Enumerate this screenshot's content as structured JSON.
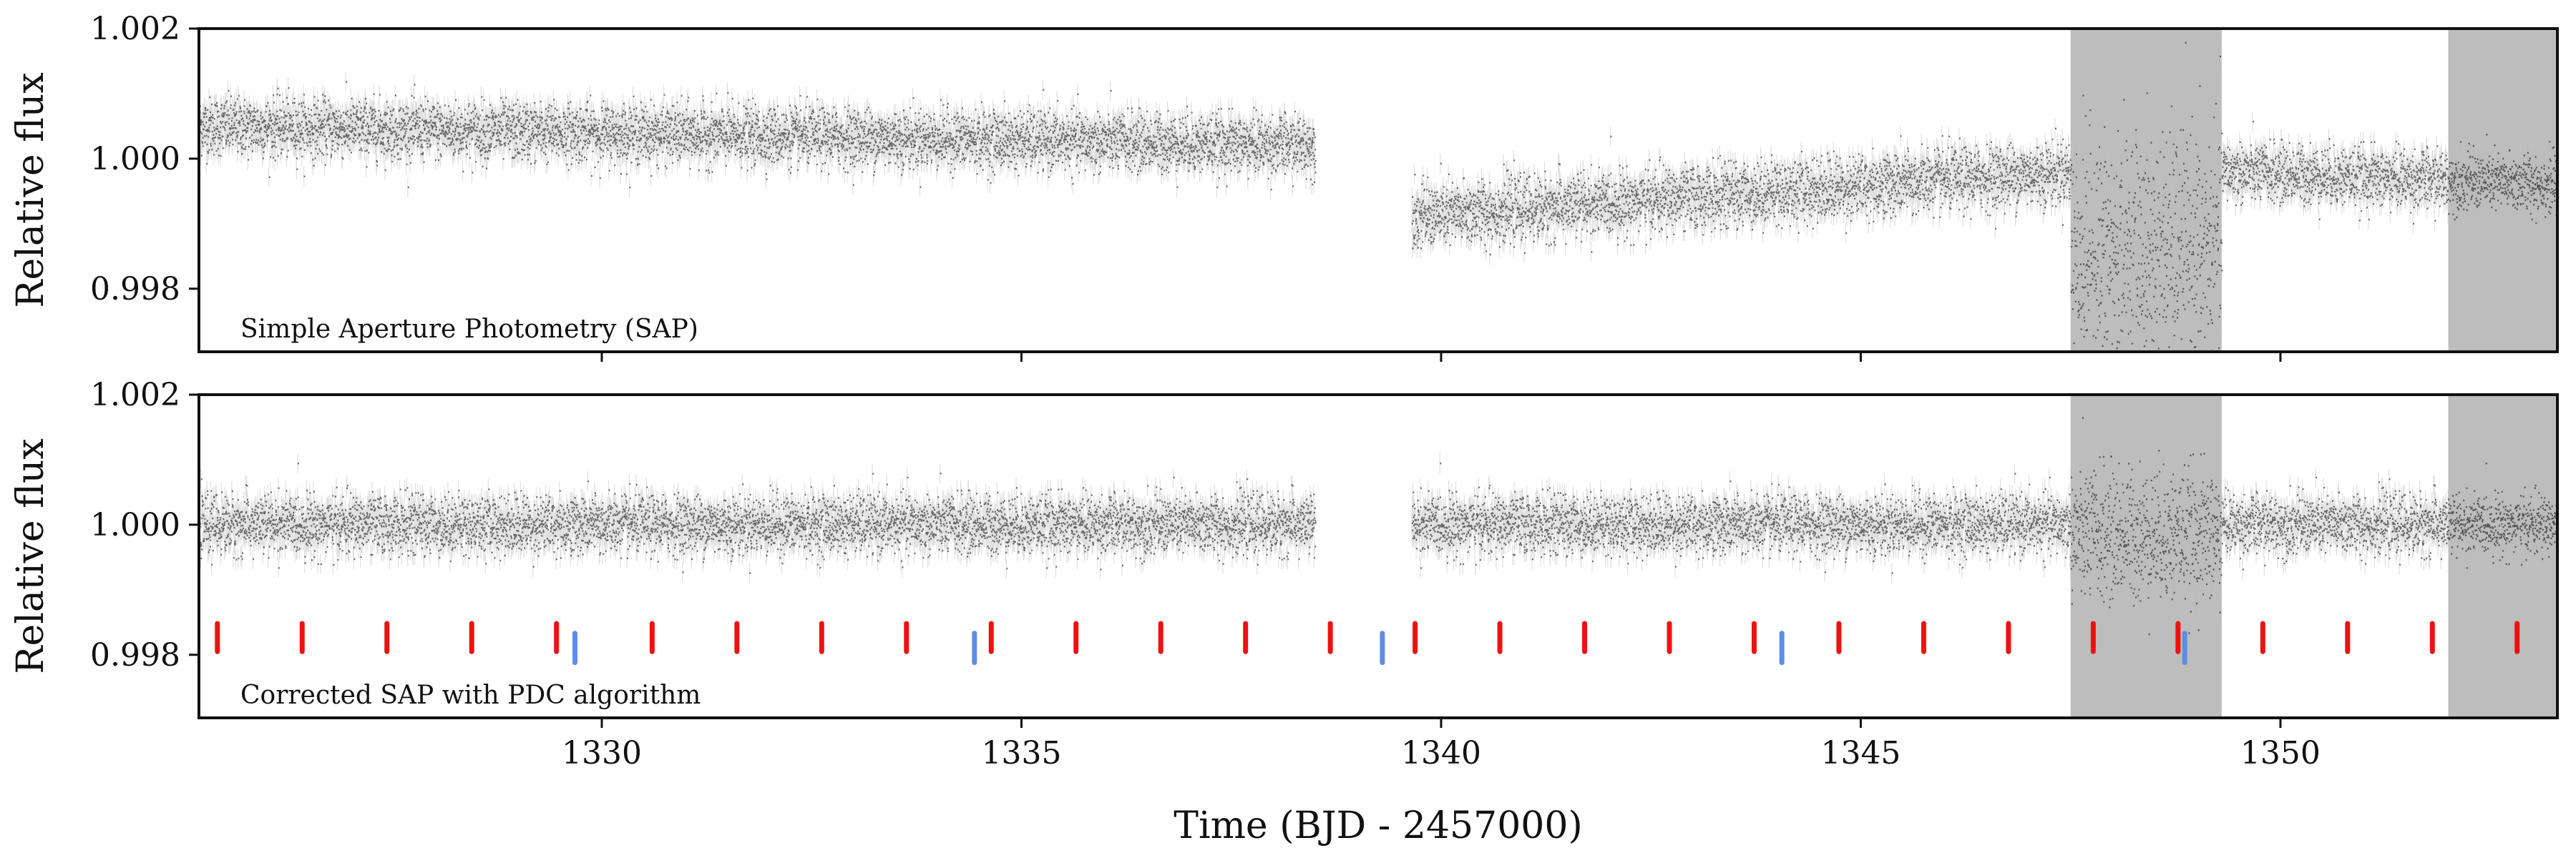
{
  "figure": {
    "xlabel": "Time (BJD - 2457000)",
    "ylabel": "Relative flux"
  },
  "chart_data": [
    {
      "type": "scatter",
      "panel": "top",
      "annotation": "Simple Aperture Photometry (SAP)",
      "xlabel": "",
      "ylabel": "Relative flux",
      "xlim": [
        1325.2,
        1353.3
      ],
      "ylim": [
        0.99703,
        1.002
      ],
      "xticks": [
        1330,
        1335,
        1340,
        1345,
        1350
      ],
      "xticklabels": [],
      "yticks": [
        0.998,
        1.0,
        1.002
      ],
      "yticklabels": [
        "0.998",
        "1.000",
        "1.002"
      ],
      "point_color": "#000000",
      "errorbar_color": "#bbbbbb",
      "shaded_intervals": [
        [
          1347.5,
          1349.3
        ],
        [
          1352.0,
          1353.3
        ]
      ],
      "shade_color": "#bdbdbd",
      "grid": false,
      "segments": [
        {
          "x_start": 1325.2,
          "x_end": 1338.5,
          "y_start": 1.0005,
          "y_end": 1.0002,
          "scatter": 0.00022
        },
        {
          "x_start": 1339.65,
          "x_end": 1347.5,
          "y_start": 0.9991,
          "y_end": 0.9998,
          "scatter": 0.00024
        },
        {
          "x_start": 1347.5,
          "x_end": 1349.3,
          "y_start": 0.9985,
          "y_end": 0.9986,
          "scatter": 0.0009
        },
        {
          "x_start": 1349.3,
          "x_end": 1353.3,
          "y_start": 0.9998,
          "y_end": 0.9996,
          "scatter": 0.00022
        }
      ]
    },
    {
      "type": "scatter",
      "panel": "bottom",
      "annotation": "Corrected SAP with PDC algorithm",
      "xlabel": "Time (BJD - 2457000)",
      "ylabel": "Relative flux",
      "xlim": [
        1325.2,
        1353.3
      ],
      "ylim": [
        0.99703,
        1.002
      ],
      "xticks": [
        1330,
        1335,
        1340,
        1345,
        1350
      ],
      "xticklabels": [
        "1330",
        "1335",
        "1340",
        "1345",
        "1350"
      ],
      "yticks": [
        0.998,
        1.0,
        1.002
      ],
      "yticklabels": [
        "0.998",
        "1.000",
        "1.002"
      ],
      "point_color": "#000000",
      "errorbar_color": "#bbbbbb",
      "shaded_intervals": [
        [
          1347.5,
          1349.3
        ],
        [
          1352.0,
          1353.3
        ]
      ],
      "shade_color": "#bdbdbd",
      "grid": false,
      "segments": [
        {
          "x_start": 1325.2,
          "x_end": 1338.5,
          "y_start": 1.0,
          "y_end": 1.0,
          "scatter": 0.00022
        },
        {
          "x_start": 1339.65,
          "x_end": 1347.5,
          "y_start": 1.0,
          "y_end": 1.0,
          "scatter": 0.00022
        },
        {
          "x_start": 1347.5,
          "x_end": 1349.3,
          "y_start": 0.99985,
          "y_end": 0.99985,
          "scatter": 0.0005
        },
        {
          "x_start": 1349.3,
          "x_end": 1353.3,
          "y_start": 1.0,
          "y_end": 1.0,
          "scatter": 0.00022
        }
      ],
      "transit_markers": {
        "red": {
          "color": "#ee1111",
          "y_range": [
            0.99805,
            0.99848
          ],
          "x": [
            1325.42,
            1326.43,
            1327.44,
            1328.45,
            1329.46,
            1330.6,
            1331.61,
            1332.62,
            1333.63,
            1334.64,
            1335.65,
            1336.66,
            1337.67,
            1338.68,
            1339.69,
            1340.7,
            1341.71,
            1342.72,
            1343.73,
            1344.74,
            1345.75,
            1346.76,
            1347.77,
            1348.78,
            1349.79,
            1350.8,
            1351.81,
            1352.82
          ]
        },
        "blue": {
          "color": "#5b8ee6",
          "y_range": [
            0.99788,
            0.99833
          ],
          "x": [
            1329.68,
            1334.44,
            1339.3,
            1344.06,
            1348.86
          ]
        }
      }
    }
  ]
}
